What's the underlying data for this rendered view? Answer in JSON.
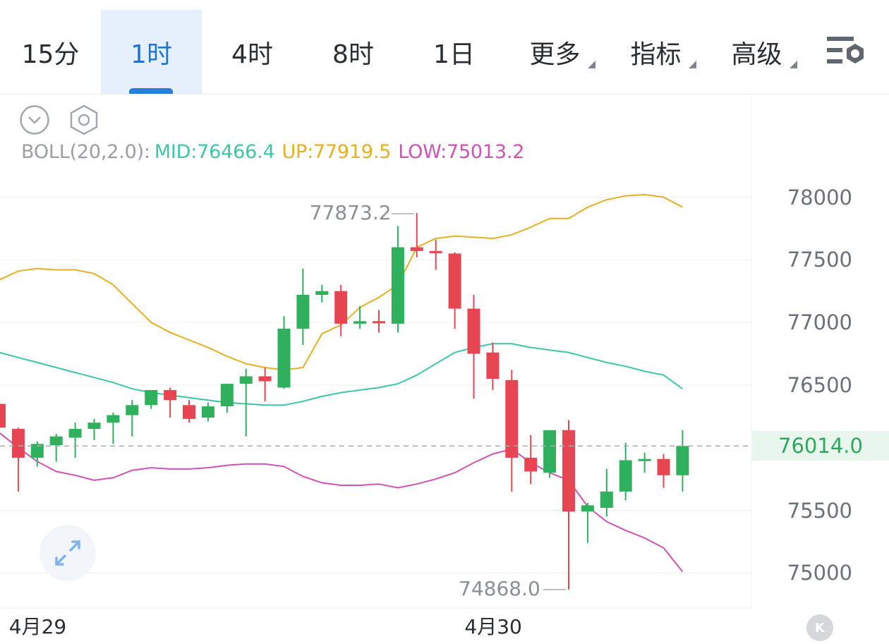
{
  "tabs": [
    {
      "label": "15分",
      "active": false
    },
    {
      "label": "1时",
      "active": true
    },
    {
      "label": "4时",
      "active": false
    },
    {
      "label": "8时",
      "active": false
    },
    {
      "label": "1日",
      "active": false
    },
    {
      "label": "更多",
      "active": false,
      "dropdown": true
    },
    {
      "label": "指标",
      "active": false,
      "dropdown": true
    },
    {
      "label": "高级",
      "active": false,
      "dropdown": true
    }
  ],
  "icons": {
    "settings": "chart-settings-icon",
    "collapse": "chevron-down-circle-icon",
    "gear": "hexagon-gear-icon",
    "expand": "expand-arrows-icon",
    "scroll_end": "scroll-to-latest-icon"
  },
  "scroll_end_glyph": "K",
  "boll": {
    "name": "BOLL(20,2.0):",
    "mid": "MID:76466.4",
    "up": "UP:77919.5",
    "low": "LOW:75013.2"
  },
  "colors": {
    "up_candle": "#2eb05c",
    "down_candle": "#e84553",
    "mid_line": "#3cc7a8",
    "up_line": "#e8b021",
    "low_line": "#d152b6",
    "accent": "#1f74d6"
  },
  "chart_data": {
    "type": "candlestick",
    "interval": "1时",
    "y_ticks": [
      "78000",
      "77500",
      "77000",
      "76500",
      "76000",
      "75500",
      "75000"
    ],
    "ylim": [
      74800,
      78400
    ],
    "last_price": "76014.0",
    "high_annotation": "77873.2",
    "low_annotation": "74868.0",
    "date_labels": [
      {
        "label": "4月29",
        "index": 2
      },
      {
        "label": "4月30",
        "index": 26
      }
    ],
    "candles": [
      {
        "o": 76350,
        "h": 76350,
        "l": 75960,
        "c": 76160
      },
      {
        "o": 76150,
        "h": 76160,
        "l": 75650,
        "c": 75920
      },
      {
        "o": 75920,
        "h": 76050,
        "l": 75850,
        "c": 76030
      },
      {
        "o": 76020,
        "h": 76110,
        "l": 75890,
        "c": 76090
      },
      {
        "o": 76080,
        "h": 76200,
        "l": 75920,
        "c": 76150
      },
      {
        "o": 76150,
        "h": 76230,
        "l": 76060,
        "c": 76200
      },
      {
        "o": 76200,
        "h": 76280,
        "l": 76030,
        "c": 76260
      },
      {
        "o": 76260,
        "h": 76380,
        "l": 76090,
        "c": 76340
      },
      {
        "o": 76340,
        "h": 76460,
        "l": 76310,
        "c": 76460
      },
      {
        "o": 76460,
        "h": 76480,
        "l": 76240,
        "c": 76380
      },
      {
        "o": 76340,
        "h": 76380,
        "l": 76200,
        "c": 76230
      },
      {
        "o": 76240,
        "h": 76360,
        "l": 76210,
        "c": 76330
      },
      {
        "o": 76330,
        "h": 76510,
        "l": 76280,
        "c": 76510
      },
      {
        "o": 76510,
        "h": 76630,
        "l": 76090,
        "c": 76570
      },
      {
        "o": 76570,
        "h": 76640,
        "l": 76370,
        "c": 76530
      },
      {
        "o": 76480,
        "h": 77050,
        "l": 76470,
        "c": 76950
      },
      {
        "o": 76950,
        "h": 77430,
        "l": 76820,
        "c": 77220
      },
      {
        "o": 77220,
        "h": 77300,
        "l": 77160,
        "c": 77250
      },
      {
        "o": 77250,
        "h": 77300,
        "l": 76890,
        "c": 76990
      },
      {
        "o": 76990,
        "h": 77130,
        "l": 76950,
        "c": 77010
      },
      {
        "o": 77010,
        "h": 77100,
        "l": 76920,
        "c": 77000
      },
      {
        "o": 76990,
        "h": 77770,
        "l": 76920,
        "c": 77600
      },
      {
        "o": 77600,
        "h": 77873,
        "l": 77520,
        "c": 77570
      },
      {
        "o": 77570,
        "h": 77660,
        "l": 77420,
        "c": 77560
      },
      {
        "o": 77550,
        "h": 77560,
        "l": 76950,
        "c": 77110
      },
      {
        "o": 77110,
        "h": 77220,
        "l": 76390,
        "c": 76750
      },
      {
        "o": 76760,
        "h": 76840,
        "l": 76460,
        "c": 76550
      },
      {
        "o": 76540,
        "h": 76620,
        "l": 75650,
        "c": 75920
      },
      {
        "o": 75920,
        "h": 76100,
        "l": 75710,
        "c": 75810
      },
      {
        "o": 75800,
        "h": 76140,
        "l": 75760,
        "c": 76140
      },
      {
        "o": 76140,
        "h": 76220,
        "l": 74868,
        "c": 75490
      },
      {
        "o": 75490,
        "h": 75560,
        "l": 75240,
        "c": 75540
      },
      {
        "o": 75520,
        "h": 75830,
        "l": 75450,
        "c": 75650
      },
      {
        "o": 75650,
        "h": 76040,
        "l": 75580,
        "c": 75900
      },
      {
        "o": 75900,
        "h": 75960,
        "l": 75800,
        "c": 75910
      },
      {
        "o": 75910,
        "h": 75950,
        "l": 75680,
        "c": 75780
      },
      {
        "o": 75780,
        "h": 76140,
        "l": 75650,
        "c": 76014
      }
    ],
    "series": [
      {
        "name": "UP",
        "values": [
          77340,
          77410,
          77430,
          77420,
          77420,
          77390,
          77300,
          77150,
          77000,
          76920,
          76860,
          76800,
          76730,
          76670,
          76640,
          76620,
          76640,
          76910,
          76980,
          77120,
          77200,
          77300,
          77600,
          77670,
          77690,
          77680,
          77670,
          77700,
          77760,
          77830,
          77830,
          77920,
          77980,
          78010,
          78020,
          78000,
          77920
        ]
      },
      {
        "name": "MID",
        "values": [
          76760,
          76720,
          76680,
          76640,
          76600,
          76560,
          76520,
          76470,
          76440,
          76420,
          76400,
          76380,
          76360,
          76350,
          76340,
          76340,
          76370,
          76410,
          76440,
          76460,
          76480,
          76510,
          76580,
          76670,
          76760,
          76800,
          76830,
          76830,
          76800,
          76780,
          76760,
          76720,
          76680,
          76650,
          76610,
          76580,
          76470
        ]
      },
      {
        "name": "LOW",
        "values": [
          76120,
          76000,
          75890,
          75810,
          75780,
          75740,
          75760,
          75820,
          75840,
          75830,
          75830,
          75840,
          75860,
          75870,
          75870,
          75850,
          75770,
          75720,
          75700,
          75700,
          75710,
          75680,
          75710,
          75750,
          75800,
          75880,
          75950,
          75990,
          75880,
          75800,
          75740,
          75530,
          75410,
          75340,
          75280,
          75200,
          75010
        ]
      }
    ]
  }
}
